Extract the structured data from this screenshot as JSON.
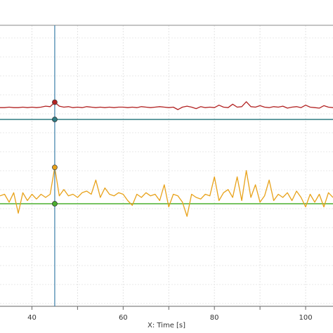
{
  "chart_data": {
    "type": "line",
    "xlabel": "X: Time [s]",
    "xlim": [
      33,
      106
    ],
    "x_ticks": [
      40,
      60,
      80,
      100
    ],
    "grid": true,
    "cursor_x": 45,
    "panels": [
      {
        "name": "upper",
        "ylim": [
          0,
          1
        ],
        "reference_level": 0.0,
        "cursor_value": 0.35,
        "series": [
          {
            "color": "#b22222",
            "x": [
              33,
              34,
              35,
              36,
              37,
              38,
              39,
              40,
              41,
              42,
              43,
              44,
              45,
              46,
              47,
              48,
              49,
              50,
              51,
              52,
              53,
              54,
              55,
              56,
              57,
              58,
              59,
              60,
              61,
              62,
              63,
              64,
              65,
              66,
              67,
              68,
              69,
              70,
              71,
              72,
              73,
              74,
              75,
              76,
              77,
              78,
              79,
              80,
              81,
              82,
              83,
              84,
              85,
              86,
              87,
              88,
              89,
              90,
              91,
              92,
              93,
              94,
              95,
              96,
              97,
              98,
              99,
              100,
              101,
              102,
              103,
              104,
              105,
              106
            ],
            "y": [
              0.24,
              0.24,
              0.25,
              0.24,
              0.24,
              0.25,
              0.24,
              0.25,
              0.24,
              0.25,
              0.27,
              0.26,
              0.35,
              0.27,
              0.25,
              0.26,
              0.24,
              0.25,
              0.24,
              0.26,
              0.25,
              0.24,
              0.25,
              0.24,
              0.25,
              0.24,
              0.25,
              0.25,
              0.24,
              0.25,
              0.24,
              0.26,
              0.25,
              0.24,
              0.25,
              0.26,
              0.25,
              0.24,
              0.25,
              0.2,
              0.25,
              0.27,
              0.25,
              0.22,
              0.26,
              0.24,
              0.25,
              0.24,
              0.29,
              0.25,
              0.24,
              0.31,
              0.25,
              0.26,
              0.36,
              0.26,
              0.25,
              0.28,
              0.25,
              0.24,
              0.26,
              0.25,
              0.27,
              0.23,
              0.25,
              0.26,
              0.24,
              0.29,
              0.25,
              0.24,
              0.23,
              0.28,
              0.25,
              0.24
            ]
          }
        ]
      },
      {
        "name": "lower",
        "ylim": [
          -1,
          2
        ],
        "reference_level": 0.0,
        "cursor_value": 1.15,
        "series": [
          {
            "color": "#e8a21a",
            "x": [
              33,
              34,
              35,
              36,
              37,
              38,
              39,
              40,
              41,
              42,
              43,
              44,
              45,
              46,
              47,
              48,
              49,
              50,
              51,
              52,
              53,
              54,
              55,
              56,
              57,
              58,
              59,
              60,
              61,
              62,
              63,
              64,
              65,
              66,
              67,
              68,
              69,
              70,
              71,
              72,
              73,
              74,
              75,
              76,
              77,
              78,
              79,
              80,
              81,
              82,
              83,
              84,
              85,
              86,
              87,
              88,
              89,
              90,
              91,
              92,
              93,
              94,
              95,
              96,
              97,
              98,
              99,
              100,
              101,
              102,
              103,
              104,
              105,
              106
            ],
            "y": [
              0.25,
              0.3,
              0.05,
              0.35,
              -0.3,
              0.35,
              0.1,
              0.3,
              0.15,
              0.3,
              0.2,
              0.3,
              1.15,
              0.25,
              0.45,
              0.25,
              0.3,
              0.2,
              0.35,
              0.4,
              0.3,
              0.75,
              0.2,
              0.5,
              0.3,
              0.25,
              0.35,
              0.3,
              0.1,
              -0.05,
              0.3,
              0.2,
              0.35,
              0.25,
              0.3,
              0.1,
              0.6,
              -0.1,
              0.3,
              0.25,
              0.05,
              -0.4,
              0.3,
              0.2,
              0.15,
              0.3,
              0.25,
              0.85,
              0.1,
              0.35,
              0.45,
              0.2,
              0.85,
              0.1,
              1.05,
              0.2,
              0.6,
              0.05,
              0.25,
              0.75,
              0.1,
              0.3,
              0.2,
              0.35,
              0.1,
              0.4,
              0.2,
              -0.1,
              0.3,
              0.05,
              0.3,
              -0.1,
              0.35,
              0.2
            ]
          }
        ]
      }
    ]
  }
}
